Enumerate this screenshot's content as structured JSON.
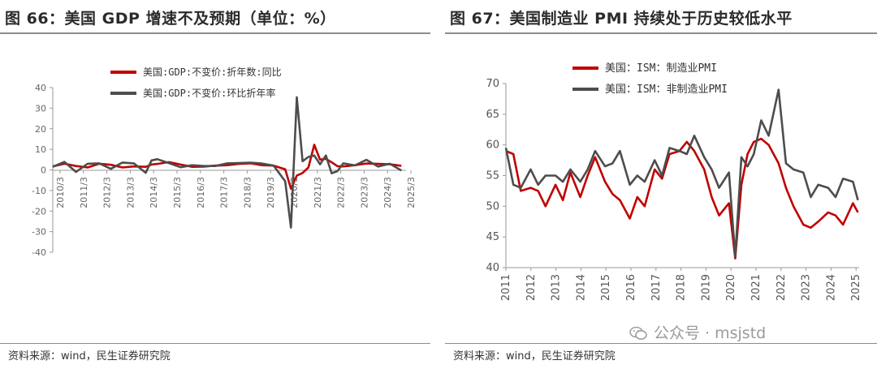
{
  "left": {
    "title": "图 66：美国 GDP 增速不及预期（单位：%）",
    "source": "资料来源：wind，民生证券研究院"
  },
  "right": {
    "title": "图 67：美国制造业 PMI 持续处于历史较低水平",
    "source": "资料来源：wind，民生证券研究院"
  },
  "watermark": "公众号 · msjstd",
  "colors": {
    "red": "#c00000",
    "gray": "#4d4d4d"
  },
  "chart_data": [
    {
      "type": "line",
      "title": "",
      "xlabel": "",
      "ylabel": "",
      "ylim": [
        -40,
        40
      ],
      "yticks": [
        40,
        30,
        20,
        10,
        0,
        -10,
        -20,
        -30,
        -40
      ],
      "xticks": [
        "2010/3",
        "2011/3",
        "2012/3",
        "2013/3",
        "2014/3",
        "2015/3",
        "2016/3",
        "2017/3",
        "2018/3",
        "2019/3",
        "2020/3",
        "2021/3",
        "2022/3",
        "2023/3",
        "2024/3",
        "2025/3"
      ],
      "x": [
        2010.0,
        2010.5,
        2011.0,
        2011.5,
        2012.0,
        2012.5,
        2013.0,
        2013.5,
        2014.0,
        2014.25,
        2014.5,
        2015.0,
        2015.5,
        2016.0,
        2016.5,
        2017.0,
        2017.5,
        2018.0,
        2018.5,
        2019.0,
        2019.5,
        2020.0,
        2020.25,
        2020.5,
        2020.75,
        2021.0,
        2021.25,
        2021.5,
        2021.75,
        2022.0,
        2022.25,
        2022.5,
        2023.0,
        2023.5,
        2024.0,
        2024.5,
        2025.0
      ],
      "legend_position": "top",
      "series": [
        {
          "name": "美国:GDP:不变价:折年数:同比",
          "color": "#c00000",
          "values": [
            1.7,
            3.0,
            1.9,
            1.2,
            3.0,
            2.5,
            1.2,
            1.7,
            1.5,
            2.6,
            2.9,
            3.8,
            2.6,
            1.5,
            1.6,
            2.1,
            2.3,
            2.9,
            3.2,
            2.3,
            2.1,
            0.3,
            -9.1,
            -2.8,
            -1.5,
            1.2,
            12.2,
            5.0,
            5.4,
            3.7,
            1.8,
            1.7,
            2.3,
            3.1,
            2.9,
            2.7,
            2.0
          ]
        },
        {
          "name": "美国:GDP:不变价:环比折年率",
          "color": "#4d4d4d",
          "values": [
            1.5,
            3.9,
            -1.0,
            3.0,
            3.2,
            0.5,
            3.6,
            3.1,
            -1.4,
            4.6,
            5.2,
            3.3,
            1.3,
            2.3,
            1.9,
            1.9,
            3.2,
            3.3,
            3.5,
            3.1,
            2.1,
            -5.5,
            -28.0,
            35.3,
            4.2,
            6.3,
            7.0,
            2.7,
            7.0,
            -1.6,
            -0.6,
            3.2,
            2.2,
            4.9,
            1.6,
            3.0,
            -0.3
          ]
        }
      ]
    },
    {
      "type": "line",
      "title": "",
      "xlabel": "",
      "ylabel": "",
      "ylim": [
        40,
        70
      ],
      "yticks": [
        70,
        65,
        60,
        55,
        50,
        45,
        40
      ],
      "xticks": [
        "2011",
        "2012",
        "2013",
        "2014",
        "2015",
        "2016",
        "2017",
        "2018",
        "2019",
        "2020",
        "2021",
        "2022",
        "2023",
        "2024",
        "2025"
      ],
      "x": [
        2011.0,
        2011.3,
        2011.6,
        2012.0,
        2012.3,
        2012.6,
        2013.0,
        2013.3,
        2013.6,
        2014.0,
        2014.3,
        2014.6,
        2015.0,
        2015.3,
        2015.6,
        2016.0,
        2016.3,
        2016.6,
        2017.0,
        2017.3,
        2017.6,
        2018.0,
        2018.3,
        2018.6,
        2019.0,
        2019.3,
        2019.6,
        2020.0,
        2020.25,
        2020.5,
        2020.75,
        2021.0,
        2021.3,
        2021.6,
        2022.0,
        2022.3,
        2022.6,
        2023.0,
        2023.3,
        2023.6,
        2024.0,
        2024.3,
        2024.6,
        2025.0,
        2025.2
      ],
      "legend_position": "top",
      "series": [
        {
          "name": "美国：ISM：制造业PMI",
          "color": "#c00000",
          "values": [
            59.0,
            58.5,
            52.5,
            53.0,
            52.5,
            50.0,
            53.5,
            51.0,
            55.5,
            51.5,
            55.0,
            58.0,
            54.0,
            52.0,
            51.0,
            48.0,
            51.5,
            50.0,
            56.0,
            54.5,
            58.5,
            59.0,
            60.5,
            59.0,
            56.0,
            51.5,
            48.5,
            50.5,
            41.5,
            53.5,
            58.5,
            60.5,
            61.0,
            60.0,
            57.0,
            53.0,
            50.0,
            47.0,
            46.5,
            47.5,
            49.0,
            48.5,
            47.0,
            50.5,
            49.0
          ]
        },
        {
          "name": "美国：ISM：非制造业PMI",
          "color": "#4d4d4d",
          "values": [
            59.5,
            53.5,
            53.0,
            56.0,
            53.5,
            55.0,
            55.0,
            54.0,
            56.0,
            54.0,
            56.0,
            59.0,
            56.5,
            57.0,
            59.0,
            53.5,
            55.0,
            54.0,
            57.5,
            55.0,
            59.5,
            59.0,
            58.5,
            61.5,
            58.0,
            56.0,
            53.0,
            55.5,
            41.8,
            58.0,
            56.5,
            58.5,
            64.0,
            61.5,
            69.0,
            57.0,
            56.0,
            55.5,
            51.5,
            53.5,
            53.0,
            51.5,
            54.5,
            54.0,
            51.0
          ]
        }
      ]
    }
  ]
}
